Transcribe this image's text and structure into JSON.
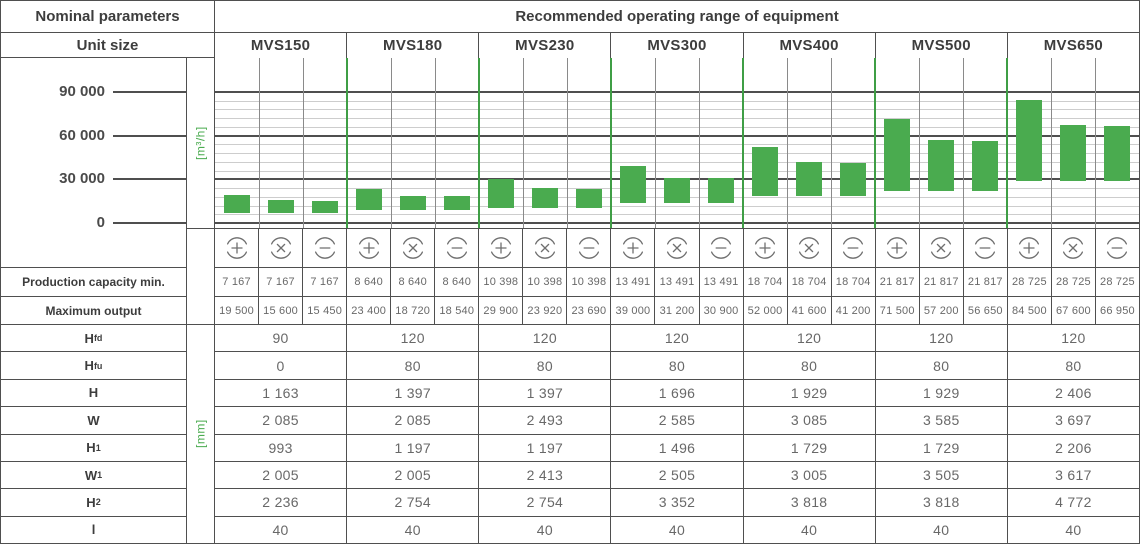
{
  "header": {
    "left": "Nominal parameters",
    "right": "Recommended operating range of equipment",
    "unit_size": "Unit size"
  },
  "units": [
    "MVS150",
    "MVS180",
    "MVS230",
    "MVS300",
    "MVS400",
    "MVS500",
    "MVS650"
  ],
  "chart_data": {
    "type": "bar",
    "subtype": "floating-range-columns",
    "title": "Recommended operating range of equipment",
    "ylabel": "[m³/h]",
    "yticks": [
      0,
      30000,
      60000,
      90000
    ],
    "ytick_labels": [
      "0",
      "30 000",
      "60 000",
      "90 000"
    ],
    "ylim": [
      0,
      113000
    ],
    "minor_grid_step": 6000,
    "grid": true,
    "categories": [
      "MVS150",
      "MVS180",
      "MVS230",
      "MVS300",
      "MVS400",
      "MVS500",
      "MVS650"
    ],
    "modes": [
      "plus",
      "cross",
      "minus"
    ],
    "series": [
      {
        "name": "plus",
        "ranges": [
          [
            7167,
            19500
          ],
          [
            8640,
            23400
          ],
          [
            10398,
            29900
          ],
          [
            13491,
            39000
          ],
          [
            18704,
            52000
          ],
          [
            21817,
            71500
          ],
          [
            28725,
            84500
          ]
        ]
      },
      {
        "name": "cross",
        "ranges": [
          [
            7167,
            15600
          ],
          [
            8640,
            18720
          ],
          [
            10398,
            23920
          ],
          [
            13491,
            31200
          ],
          [
            18704,
            41600
          ],
          [
            21817,
            57200
          ],
          [
            28725,
            67600
          ]
        ]
      },
      {
        "name": "minus",
        "ranges": [
          [
            7167,
            15450
          ],
          [
            8640,
            18540
          ],
          [
            10398,
            23690
          ],
          [
            13491,
            30900
          ],
          [
            18704,
            41200
          ],
          [
            21817,
            56650
          ],
          [
            28725,
            66950
          ]
        ]
      }
    ],
    "bar_color": "#4aab4f"
  },
  "capacity_rows": [
    {
      "id": "production_capacity_min",
      "label": "Production capacity min.",
      "values": [
        "7 167",
        "7 167",
        "7 167",
        "8 640",
        "8 640",
        "8 640",
        "10 398",
        "10 398",
        "10 398",
        "13 491",
        "13 491",
        "13 491",
        "18 704",
        "18 704",
        "18 704",
        "21 817",
        "21 817",
        "21 817",
        "28 725",
        "28 725",
        "28 725"
      ]
    },
    {
      "id": "maximum_output",
      "label": "Maximum output",
      "values": [
        "19 500",
        "15 600",
        "15 450",
        "23 400",
        "18 720",
        "18 540",
        "29 900",
        "23 920",
        "23 690",
        "39 000",
        "31 200",
        "30 900",
        "52 000",
        "41 600",
        "41 200",
        "71 500",
        "57 200",
        "56 650",
        "84 500",
        "67 600",
        "66 950"
      ]
    }
  ],
  "dimensions": {
    "unit": "[mm]",
    "rows": [
      {
        "base": "H",
        "sub": "fd",
        "values": [
          "90",
          "120",
          "120",
          "120",
          "120",
          "120",
          "120"
        ]
      },
      {
        "base": "H",
        "sub": "fu",
        "values": [
          "0",
          "80",
          "80",
          "80",
          "80",
          "80",
          "80"
        ]
      },
      {
        "base": "H",
        "sub": "",
        "values": [
          "1 163",
          "1 397",
          "1 397",
          "1 696",
          "1 929",
          "1 929",
          "2 406"
        ]
      },
      {
        "base": "W",
        "sub": "",
        "values": [
          "2 085",
          "2 085",
          "2 493",
          "2 585",
          "3 085",
          "3 585",
          "3 697"
        ]
      },
      {
        "base": "H",
        "sub": "1",
        "values": [
          "993",
          "1 197",
          "1 197",
          "1 496",
          "1 729",
          "1 729",
          "2 206"
        ]
      },
      {
        "base": "W",
        "sub": "1",
        "values": [
          "2 005",
          "2 005",
          "2 413",
          "2 505",
          "3 005",
          "3 505",
          "3 617"
        ]
      },
      {
        "base": "H",
        "sub": "2",
        "values": [
          "2 236",
          "2 754",
          "2 754",
          "3 352",
          "3 818",
          "3 818",
          "4 772"
        ]
      },
      {
        "base": "l",
        "sub": "",
        "values": [
          "40",
          "40",
          "40",
          "40",
          "40",
          "40",
          "40"
        ]
      }
    ]
  },
  "colors": {
    "bar_green": "#4aab4f",
    "separator_green": "#3f9e45",
    "border_dark": "#4f4f4f",
    "grid_minor": "#cdcdcd",
    "subcol_line": "#8a8a8a",
    "text_dark": "#3d3d3d",
    "text_value": "#686868"
  }
}
